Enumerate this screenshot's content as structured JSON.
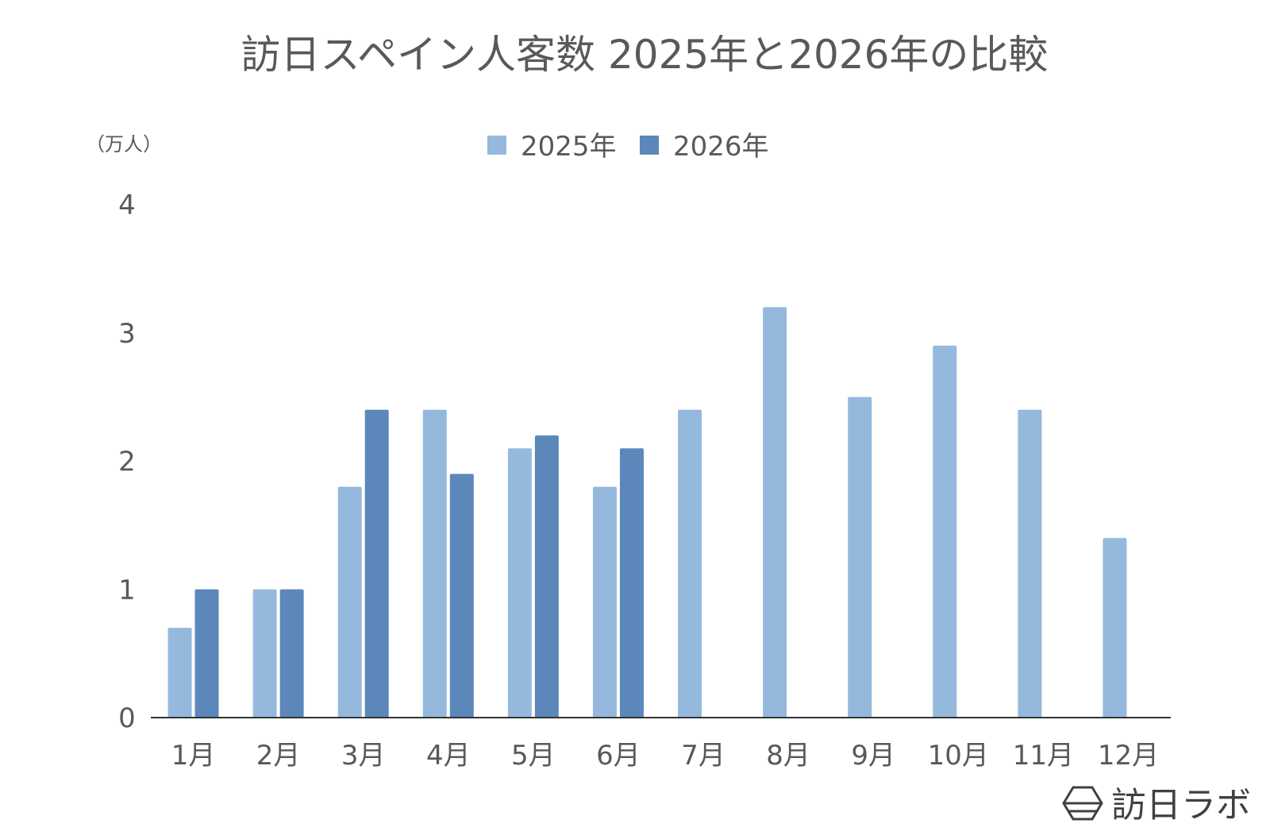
{
  "colors": {
    "series_2025": "#94b9dc",
    "series_2026": "#5b87bb",
    "text": "#595959",
    "axis": "#333333",
    "logo": "#404040"
  },
  "brand": {
    "name": "訪日ラボ",
    "icon": "hexagon-logo-icon"
  },
  "chart_data": {
    "type": "bar",
    "title": "訪日スペイン人客数 2025年と2026年の比較",
    "ylabel": "（万人）",
    "xlabel": "",
    "categories": [
      "1月",
      "2月",
      "3月",
      "4月",
      "5月",
      "6月",
      "7月",
      "8月",
      "9月",
      "10月",
      "11月",
      "12月"
    ],
    "series": [
      {
        "name": "2025年",
        "values": [
          0.7,
          1.0,
          1.8,
          2.4,
          2.1,
          1.8,
          2.4,
          3.2,
          2.5,
          2.9,
          2.4,
          1.4
        ]
      },
      {
        "name": "2026年",
        "values": [
          1.0,
          1.0,
          2.4,
          1.9,
          2.2,
          2.1,
          null,
          null,
          null,
          null,
          null,
          null
        ]
      }
    ],
    "ylim": [
      0,
      4
    ],
    "yticks": [
      "0",
      "1",
      "2",
      "3",
      "4"
    ],
    "grid": false,
    "legend_position": "top-center"
  }
}
